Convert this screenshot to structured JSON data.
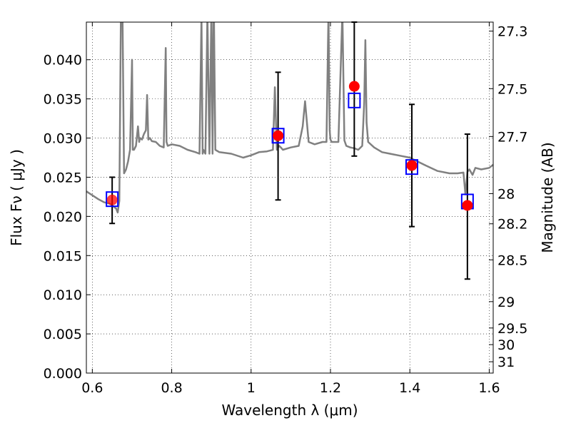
{
  "chart_data": {
    "type": "line",
    "xlabel": "Wavelength  λ (μm)",
    "ylabel": "Flux  Fν  ( μJy )",
    "y2label": "Magnitude (AB)",
    "xlim": [
      0.585,
      1.61
    ],
    "ylim": [
      0.0,
      0.0448
    ],
    "grid": true,
    "x_ticks": [
      0.6,
      0.8,
      1.0,
      1.2,
      1.4,
      1.6
    ],
    "x_tick_labels": [
      "0.6",
      "0.8",
      "1",
      "1.2",
      "1.4",
      "1.6"
    ],
    "y_ticks": [
      0.0,
      0.005,
      0.01,
      0.015,
      0.02,
      0.025,
      0.03,
      0.035,
      0.04
    ],
    "y_tick_labels": [
      "0.000",
      "0.005",
      "0.010",
      "0.015",
      "0.020",
      "0.025",
      "0.030",
      "0.035",
      "0.040"
    ],
    "y2_ticks": [
      27.3,
      27.5,
      27.7,
      28,
      28.2,
      28.5,
      29,
      29.5,
      30,
      31
    ],
    "y2_tick_labels": [
      "27.3",
      "27.5",
      "27.7",
      "28",
      "28.2",
      "28.5",
      "29",
      "29.5",
      "30",
      "31"
    ],
    "series": [
      {
        "kind": "model_spectrum",
        "color": "#808080",
        "x": [
          0.585,
          0.6,
          0.615,
          0.63,
          0.645,
          0.66,
          0.664,
          0.668,
          0.672,
          0.674,
          0.676,
          0.68,
          0.685,
          0.69,
          0.695,
          0.7,
          0.702,
          0.705,
          0.71,
          0.715,
          0.718,
          0.72,
          0.725,
          0.73,
          0.735,
          0.738,
          0.741,
          0.745,
          0.75,
          0.76,
          0.77,
          0.78,
          0.785,
          0.787,
          0.79,
          0.8,
          0.82,
          0.84,
          0.86,
          0.87,
          0.875,
          0.878,
          0.88,
          0.885,
          0.89,
          0.895,
          0.9,
          0.903,
          0.906,
          0.91,
          0.92,
          0.95,
          0.98,
          1.0,
          1.02,
          1.04,
          1.055,
          1.06,
          1.065,
          1.068,
          1.071,
          1.075,
          1.08,
          1.1,
          1.12,
          1.13,
          1.136,
          1.145,
          1.16,
          1.18,
          1.19,
          1.195,
          1.198,
          1.2,
          1.203,
          1.22,
          1.23,
          1.235,
          1.24,
          1.25,
          1.26,
          1.27,
          1.28,
          1.285,
          1.288,
          1.291,
          1.295,
          1.31,
          1.33,
          1.35,
          1.38,
          1.4,
          1.42,
          1.44,
          1.47,
          1.5,
          1.52,
          1.535,
          1.54,
          1.545,
          1.55,
          1.558,
          1.565,
          1.58,
          1.6,
          1.61
        ],
        "y": [
          0.0232,
          0.0227,
          0.0222,
          0.0218,
          0.0216,
          0.021,
          0.0205,
          0.022,
          0.046,
          0.06,
          0.046,
          0.0255,
          0.026,
          0.027,
          0.0285,
          0.04,
          0.0285,
          0.0285,
          0.029,
          0.0315,
          0.0295,
          0.03,
          0.0298,
          0.0305,
          0.031,
          0.0355,
          0.0298,
          0.03,
          0.0296,
          0.0295,
          0.029,
          0.0288,
          0.0415,
          0.0295,
          0.029,
          0.0292,
          0.029,
          0.0285,
          0.0282,
          0.028,
          0.0455,
          0.028,
          0.0285,
          0.028,
          0.046,
          0.028,
          0.0465,
          0.028,
          0.048,
          0.0285,
          0.0282,
          0.028,
          0.0275,
          0.0278,
          0.0282,
          0.0283,
          0.0285,
          0.0365,
          0.0285,
          0.0288,
          0.029,
          0.0288,
          0.0285,
          0.0288,
          0.029,
          0.0315,
          0.0347,
          0.0295,
          0.0292,
          0.0295,
          0.0295,
          0.046,
          0.031,
          0.0298,
          0.0295,
          0.0295,
          0.046,
          0.0297,
          0.029,
          0.0288,
          0.0287,
          0.0285,
          0.029,
          0.0345,
          0.0425,
          0.032,
          0.0295,
          0.0288,
          0.0282,
          0.028,
          0.0277,
          0.0275,
          0.027,
          0.0265,
          0.0258,
          0.0255,
          0.0255,
          0.0256,
          0.0228,
          0.0257,
          0.026,
          0.0253,
          0.0262,
          0.026,
          0.0262,
          0.0266
        ]
      },
      {
        "kind": "observed_photometry",
        "color": "#000000",
        "marker": "errorbar",
        "x": [
          0.65,
          1.068,
          1.26,
          1.405,
          1.545
        ],
        "y": [
          0.0221,
          0.0303,
          0.0366,
          0.0265,
          0.0214
        ],
        "yerr_low": [
          0.0191,
          0.0221,
          0.0277,
          0.0187,
          0.012
        ],
        "yerr_high": [
          0.025,
          0.0384,
          0.0448,
          0.0343,
          0.0305
        ]
      },
      {
        "kind": "model_photometry",
        "color": "#0000ff",
        "marker": "open-square",
        "x": [
          0.65,
          1.068,
          1.26,
          1.405,
          1.545
        ],
        "y": [
          0.0222,
          0.0303,
          0.0348,
          0.0263,
          0.0219
        ]
      },
      {
        "kind": "observed_points",
        "color": "#ff0000",
        "marker": "filled-circle",
        "x": [
          0.65,
          1.068,
          1.26,
          1.405,
          1.545
        ],
        "y": [
          0.0221,
          0.0303,
          0.0366,
          0.0265,
          0.0214
        ]
      }
    ]
  }
}
